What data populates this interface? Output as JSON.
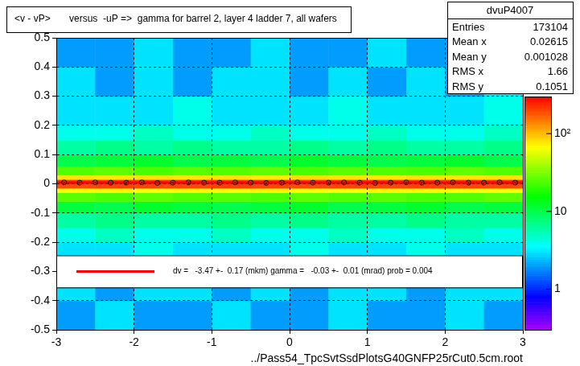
{
  "chart_data": {
    "type": "heatmap",
    "title": "<v - vP>       versus  -uP =>  gamma for barrel 2, layer 4 ladder 7, all wafers",
    "x_label": "../Pass54_TpcSvtSsdPlotsG40GNFP25rCut0.5cm.root",
    "xlim": [
      -3,
      3
    ],
    "xticks": [
      -3,
      -2,
      -1,
      0,
      1,
      2,
      3
    ],
    "ylim": [
      -0.5,
      0.5
    ],
    "yticks": [
      -0.5,
      -0.4,
      -0.3,
      -0.2,
      -0.1,
      0,
      0.1,
      0.2,
      0.3,
      0.4,
      0.5
    ],
    "grid": true,
    "x_bins": [
      -3,
      -2.5,
      -2,
      -1.5,
      -1,
      -0.5,
      0,
      0.5,
      1,
      1.5,
      2,
      2.5,
      3
    ],
    "y_bins": [
      -0.5,
      -0.4,
      -0.3,
      -0.2,
      -0.15,
      -0.1,
      -0.06,
      -0.03,
      -0.015,
      0,
      0.015,
      0.03,
      0.06,
      0.1,
      0.15,
      0.2,
      0.3,
      0.4,
      0.5
    ],
    "cells": [
      [
        2,
        3,
        2,
        2,
        3,
        2,
        2,
        3,
        2,
        2,
        3,
        2
      ],
      [
        3,
        2,
        3,
        3,
        2,
        3,
        2,
        3,
        3,
        2,
        3,
        3
      ],
      [
        3,
        3,
        4,
        3,
        3,
        3,
        4,
        3,
        3,
        4,
        3,
        3
      ],
      [
        4,
        5,
        4,
        4,
        5,
        4,
        4,
        5,
        4,
        4,
        5,
        4
      ],
      [
        6,
        7,
        6,
        6,
        7,
        6,
        7,
        6,
        6,
        7,
        6,
        6
      ],
      [
        11,
        10,
        12,
        11,
        10,
        11,
        12,
        10,
        11,
        12,
        10,
        11
      ],
      [
        26,
        24,
        27,
        25,
        26,
        24,
        27,
        25,
        26,
        24,
        25,
        27
      ],
      [
        70,
        72,
        68,
        71,
        69,
        73,
        70,
        68,
        72,
        71,
        69,
        70
      ],
      [
        195,
        205,
        200,
        198,
        210,
        202,
        196,
        204,
        199,
        207,
        201,
        197
      ],
      [
        215,
        222,
        218,
        225,
        219,
        221,
        216,
        224,
        220,
        217,
        223,
        219
      ],
      [
        80,
        78,
        82,
        79,
        81,
        77,
        83,
        80,
        78,
        82,
        79,
        81
      ],
      [
        25,
        27,
        24,
        26,
        25,
        27,
        24,
        26,
        25,
        24,
        27,
        25
      ],
      [
        10,
        11,
        12,
        10,
        11,
        10,
        12,
        11,
        10,
        11,
        12,
        10
      ],
      [
        6,
        7,
        6,
        7,
        6,
        6,
        7,
        6,
        7,
        6,
        6,
        7
      ],
      [
        4,
        4,
        5,
        4,
        4,
        5,
        4,
        4,
        5,
        4,
        4,
        5
      ],
      [
        3,
        3,
        3,
        4,
        3,
        3,
        3,
        4,
        3,
        3,
        3,
        4
      ],
      [
        3,
        2,
        3,
        2,
        3,
        3,
        2,
        3,
        2,
        3,
        2,
        3
      ],
      [
        2,
        2,
        3,
        2,
        2,
        3,
        2,
        2,
        3,
        2,
        2,
        3
      ]
    ],
    "colorbar": {
      "range": [
        0.3,
        300
      ],
      "ticks": [
        1,
        10,
        {
          "value": 100,
          "label": "10²"
        }
      ],
      "log": true
    },
    "series": [
      {
        "type": "scatter",
        "marker": "circle",
        "color": "#000000",
        "x": [
          -2.9,
          -2.7,
          -2.5,
          -2.3,
          -2.1,
          -1.9,
          -1.7,
          -1.5,
          -1.3,
          -1.1,
          -0.9,
          -0.7,
          -0.5,
          -0.3,
          -0.1,
          0.1,
          0.3,
          0.5,
          0.7,
          0.9,
          1.1,
          1.3,
          1.5,
          1.7,
          1.9,
          2.1,
          2.3,
          2.5,
          2.7,
          2.9
        ],
        "values": [
          0.005,
          0.004,
          0.005,
          0.004,
          0.004,
          0.005,
          0.003,
          0.004,
          0.005,
          0.004,
          0.004,
          0.005,
          0.004,
          0.003,
          0.004,
          0.005,
          0.004,
          0.004,
          0.005,
          0.004,
          0.003,
          0.004,
          0.005,
          0.004,
          0.004,
          0.005,
          0.004,
          0.004,
          0.005,
          0.004
        ],
        "errors": [
          0.002,
          0.002,
          0.002,
          0.002,
          0.002,
          0.002,
          0.002,
          0.002,
          0.002,
          0.002,
          0.002,
          0.002,
          0.002,
          0.002,
          0.002,
          0.002,
          0.002,
          0.002,
          0.002,
          0.002,
          0.002,
          0.002,
          0.002,
          0.002,
          0.002,
          0.002,
          0.002,
          0.002,
          0.002,
          0.002
        ]
      },
      {
        "type": "line",
        "line_style": "solid",
        "color": "#ff0000",
        "x": [
          -3,
          3
        ],
        "values": [
          0.004,
          0.004
        ]
      }
    ],
    "annotation": "dv =   -3.47 +-  0.17 (mkm) gamma =   -0.03 +-  0.01 (mrad) prob = 0.004",
    "stats": {
      "title": "dvuP4007",
      "rows": [
        {
          "label": "Entries",
          "value": 173104
        },
        {
          "label": "Mean x",
          "value": 0.02615
        },
        {
          "label": "Mean y",
          "value": 0.001028
        },
        {
          "label": "RMS x",
          "value": 1.66
        },
        {
          "label": "RMS y",
          "value": 0.1051
        }
      ]
    }
  }
}
